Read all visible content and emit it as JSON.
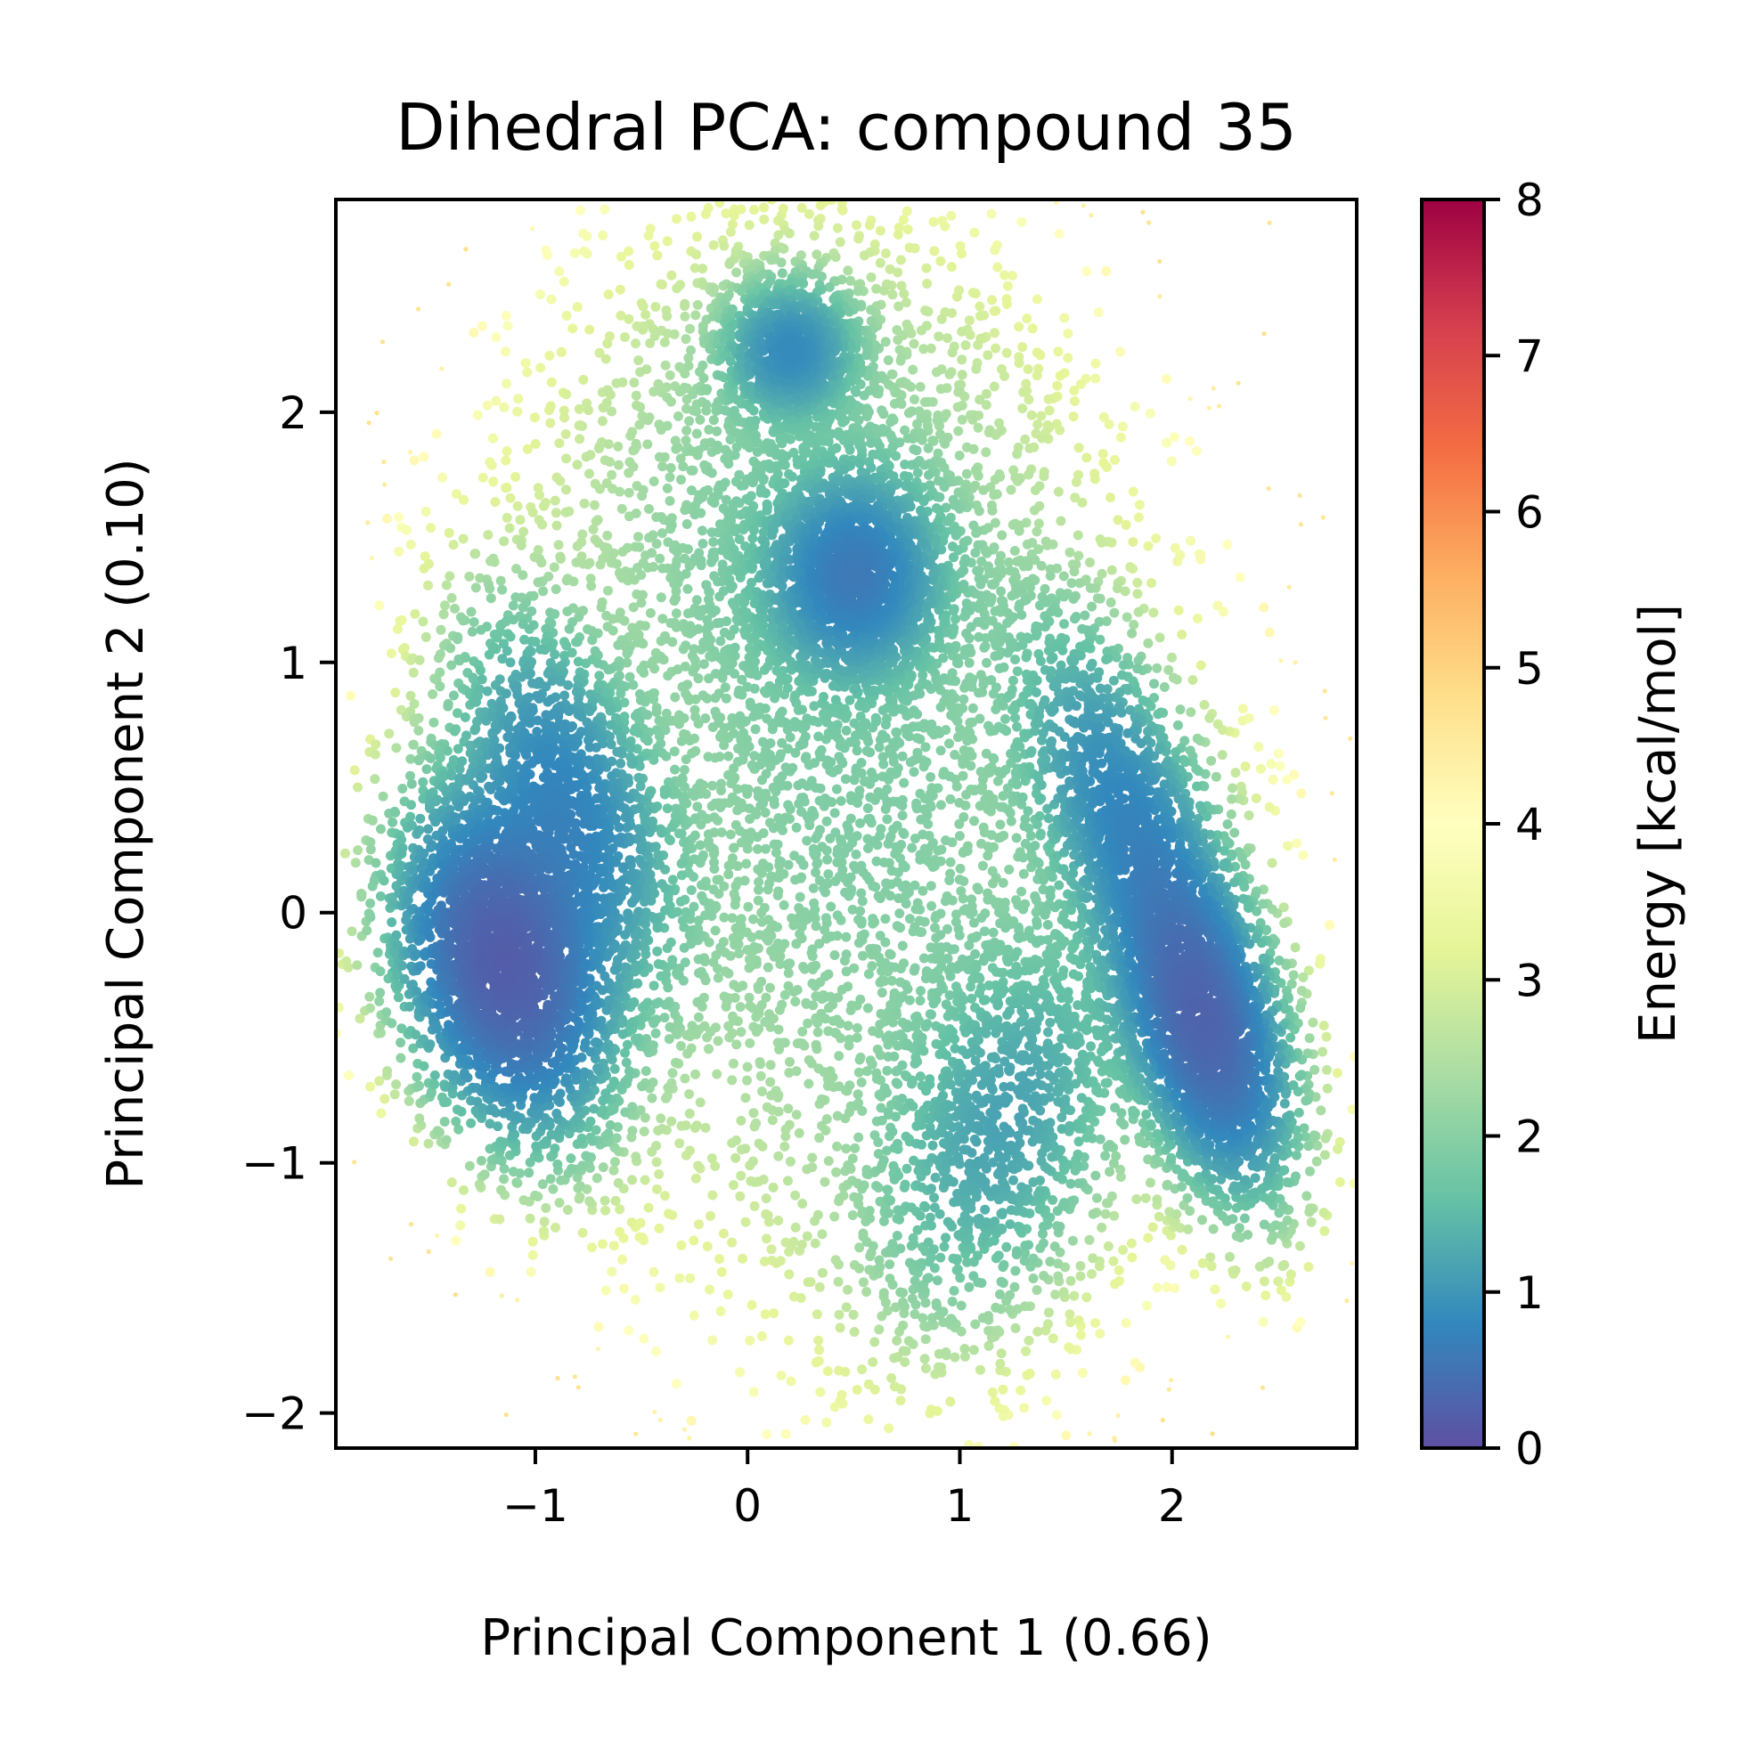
{
  "chart_data": {
    "type": "scatter",
    "title": "Dihedral PCA: compound 35",
    "xlabel": "Principal Component 1 (0.66)",
    "ylabel": "Principal Component 2 (0.10)",
    "xlim": [
      -1.94,
      2.87
    ],
    "ylim": [
      -2.14,
      2.85
    ],
    "xticks": [
      -1,
      0,
      1,
      2
    ],
    "yticks": [
      -2,
      -1,
      0,
      1,
      2
    ],
    "xtick_labels": [
      "−1",
      "0",
      "1",
      "2"
    ],
    "ytick_labels": [
      "−2",
      "−1",
      "0",
      "1",
      "2"
    ],
    "grid": false,
    "colorbar": {
      "label": "Energy [kcal/mol]",
      "min": 0,
      "max": 8,
      "ticks": [
        0,
        1,
        2,
        3,
        4,
        5,
        6,
        7,
        8
      ],
      "tick_labels": [
        "0",
        "1",
        "2",
        "3",
        "4",
        "5",
        "6",
        "7",
        "8"
      ],
      "colormap": "Spectral_r",
      "colormap_stops": [
        "#5e4fa2",
        "#3288bd",
        "#66c2a5",
        "#abdda4",
        "#e6f598",
        "#ffffbf",
        "#fee08b",
        "#fdae61",
        "#f46d43",
        "#d53e4f",
        "#9e0142"
      ]
    },
    "basins": [
      {
        "x": -1.15,
        "y": -0.2,
        "min_energy": 0.2
      },
      {
        "x": 2.15,
        "y": -0.45,
        "min_energy": 0.9
      },
      {
        "x": 0.5,
        "y": 1.35,
        "min_energy": 1.3
      },
      {
        "x": 0.2,
        "y": 2.25,
        "min_energy": 1.6
      }
    ]
  }
}
